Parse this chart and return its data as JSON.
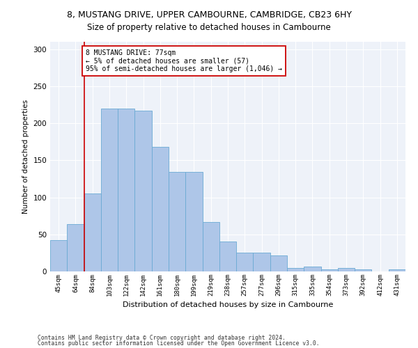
{
  "title": "8, MUSTANG DRIVE, UPPER CAMBOURNE, CAMBRIDGE, CB23 6HY",
  "subtitle": "Size of property relative to detached houses in Cambourne",
  "xlabel": "Distribution of detached houses by size in Cambourne",
  "ylabel": "Number of detached properties",
  "bar_labels": [
    "45sqm",
    "64sqm",
    "84sqm",
    "103sqm",
    "122sqm",
    "142sqm",
    "161sqm",
    "180sqm",
    "199sqm",
    "219sqm",
    "238sqm",
    "257sqm",
    "277sqm",
    "296sqm",
    "315sqm",
    "335sqm",
    "354sqm",
    "373sqm",
    "392sqm",
    "412sqm",
    "431sqm"
  ],
  "bar_values": [
    42,
    64,
    105,
    220,
    220,
    217,
    168,
    134,
    134,
    67,
    40,
    25,
    25,
    22,
    5,
    7,
    3,
    5,
    3,
    0,
    3
  ],
  "bar_color": "#aec6e8",
  "bar_edge_color": "#6aaad4",
  "vline_color": "#cc0000",
  "annotation_text": "8 MUSTANG DRIVE: 77sqm\n← 5% of detached houses are smaller (57)\n95% of semi-detached houses are larger (1,046) →",
  "annotation_box_color": "#ffffff",
  "annotation_box_edge_color": "#cc0000",
  "ylim": [
    0,
    310
  ],
  "yticks": [
    0,
    50,
    100,
    150,
    200,
    250,
    300
  ],
  "footer1": "Contains HM Land Registry data © Crown copyright and database right 2024.",
  "footer2": "Contains public sector information licensed under the Open Government Licence v3.0.",
  "bg_color": "#eef2f9",
  "fig_bg_color": "#ffffff"
}
